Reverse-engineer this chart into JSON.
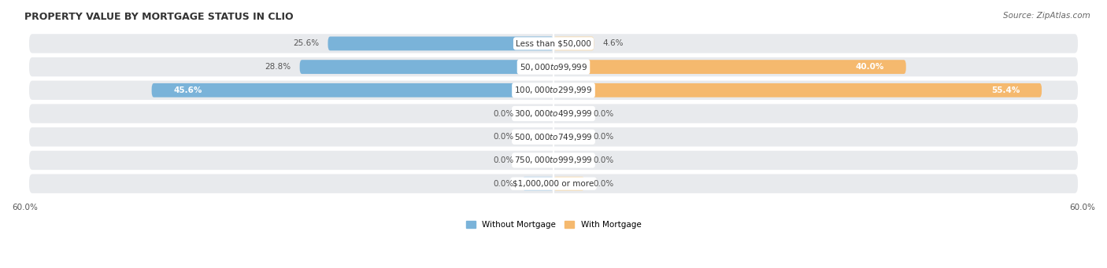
{
  "title": "PROPERTY VALUE BY MORTGAGE STATUS IN CLIO",
  "source": "Source: ZipAtlas.com",
  "categories": [
    "Less than $50,000",
    "$50,000 to $99,999",
    "$100,000 to $299,999",
    "$300,000 to $499,999",
    "$500,000 to $749,999",
    "$750,000 to $999,999",
    "$1,000,000 or more"
  ],
  "without_mortgage": [
    25.6,
    28.8,
    45.6,
    0.0,
    0.0,
    0.0,
    0.0
  ],
  "with_mortgage": [
    4.6,
    40.0,
    55.4,
    0.0,
    0.0,
    0.0,
    0.0
  ],
  "without_labels": [
    "25.6%",
    "28.8%",
    "45.6%",
    "0.0%",
    "0.0%",
    "0.0%",
    "0.0%"
  ],
  "with_labels": [
    "4.6%",
    "40.0%",
    "55.4%",
    "0.0%",
    "0.0%",
    "0.0%",
    "0.0%"
  ],
  "xlim": 60.0,
  "color_without": "#7ab3d9",
  "color_with": "#f5b96e",
  "color_without_light": "#b8d4eb",
  "color_with_light": "#f8d9a8",
  "row_bg_color": "#e8eaed",
  "label_fontsize": 7.5,
  "title_fontsize": 9,
  "source_fontsize": 7.5,
  "axis_fontsize": 7.5,
  "legend_fontsize": 7.5,
  "stub_size": 3.5
}
